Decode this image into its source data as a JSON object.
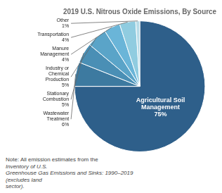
{
  "chart_data": {
    "type": "pie",
    "title": "2019 U.S. Nitrous Oxide Emissions, By Source",
    "categories": [
      "Agricultural Soil\nManagement\n75%",
      "Wastewater\nTreatment\n6%",
      "Stationary\nCombustion\n5%",
      "Industry or\nChemical\nProduction\n5%",
      "Manure\nManagement\n4%",
      "Transportation\n4%",
      "Other\n1%"
    ],
    "values": [
      75,
      6,
      5,
      5,
      4,
      4,
      1
    ],
    "colors": [
      "#2e5f8a",
      "#3d7aa0",
      "#4a8fb5",
      "#5aa4c8",
      "#6ab5d8",
      "#90cce0",
      "#b8dce8"
    ],
    "annotations": [
      "Note: All emission estimates from the",
      "Inventory of U.S.\nGreenhouse Gas Emissions and Sinks: 1990–2019",
      "(excludes land\nsector)."
    ]
  }
}
